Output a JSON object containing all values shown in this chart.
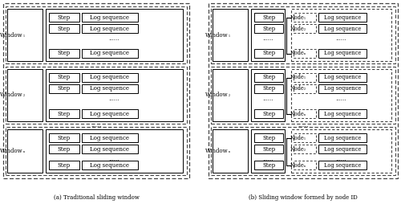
{
  "fig_width": 5.0,
  "fig_height": 2.54,
  "dpi": 100,
  "bg_color": "#ffffff",
  "caption_a": "(a) Traditional sliding window",
  "caption_b": "(b) Sliding window formed by node ID",
  "step_text": "Step",
  "log_text": "Log sequence",
  "dots": "......",
  "window_subs": [
    "₁",
    "₂",
    "ₙ"
  ],
  "node_subs": [
    "₁",
    "₂",
    "ₙ"
  ]
}
